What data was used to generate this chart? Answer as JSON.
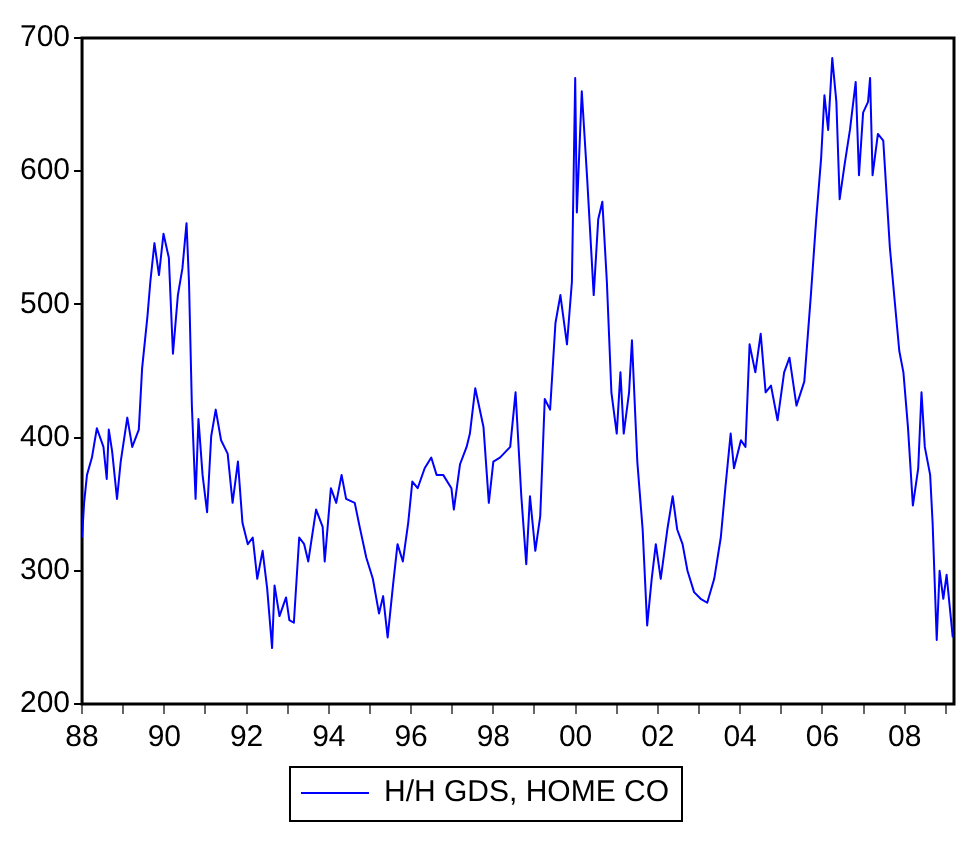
{
  "chart_data": {
    "type": "line",
    "x": [
      1988.0,
      1988.05,
      1988.12,
      1988.24,
      1988.36,
      1988.52,
      1988.6,
      1988.65,
      1988.73,
      1988.85,
      1988.94,
      1989.1,
      1989.22,
      1989.38,
      1989.46,
      1989.59,
      1989.66,
      1989.76,
      1989.87,
      1989.98,
      1990.11,
      1990.21,
      1990.33,
      1990.44,
      1990.54,
      1990.6,
      1990.67,
      1990.76,
      1990.83,
      1990.93,
      1991.04,
      1991.14,
      1991.25,
      1991.38,
      1991.54,
      1991.66,
      1991.79,
      1991.9,
      1992.03,
      1992.15,
      1992.26,
      1992.39,
      1992.5,
      1992.62,
      1992.68,
      1992.8,
      1992.96,
      1993.04,
      1993.15,
      1993.28,
      1993.4,
      1993.5,
      1993.69,
      1993.85,
      1993.9,
      1994.05,
      1994.18,
      1994.31,
      1994.42,
      1994.63,
      1994.75,
      1994.91,
      1995.07,
      1995.22,
      1995.32,
      1995.43,
      1995.56,
      1995.67,
      1995.8,
      1995.93,
      1996.03,
      1996.16,
      1996.33,
      1996.49,
      1996.62,
      1996.78,
      1996.98,
      1997.04,
      1997.19,
      1997.35,
      1997.43,
      1997.56,
      1997.76,
      1997.89,
      1998.0,
      1998.16,
      1998.41,
      1998.54,
      1998.68,
      1998.8,
      1998.89,
      1999.02,
      1999.14,
      1999.25,
      1999.38,
      1999.51,
      1999.63,
      1999.79,
      1999.91,
      1999.99,
      2000.03,
      2000.15,
      2000.28,
      2000.44,
      2000.55,
      2000.65,
      2000.76,
      2000.87,
      2001.0,
      2001.09,
      2001.17,
      2001.3,
      2001.37,
      2001.5,
      2001.63,
      2001.74,
      2001.85,
      2001.95,
      2002.07,
      2002.23,
      2002.36,
      2002.47,
      2002.6,
      2002.72,
      2002.88,
      2003.04,
      2003.2,
      2003.37,
      2003.53,
      2003.64,
      2003.77,
      2003.85,
      2004.02,
      2004.13,
      2004.23,
      2004.37,
      2004.5,
      2004.62,
      2004.75,
      2004.91,
      2005.07,
      2005.2,
      2005.37,
      2005.56,
      2005.72,
      2005.85,
      2005.97,
      2006.05,
      2006.14,
      2006.24,
      2006.34,
      2006.42,
      2006.54,
      2006.67,
      2006.81,
      2006.89,
      2006.99,
      2007.11,
      2007.16,
      2007.22,
      2007.35,
      2007.48,
      2007.64,
      2007.76,
      2007.87,
      2007.97,
      2008.08,
      2008.2,
      2008.33,
      2008.41,
      2008.49,
      2008.62,
      2008.68,
      2008.78,
      2008.85,
      2008.94,
      2009.02,
      2009.17
    ],
    "series": [
      {
        "name": "H/H GDS, HOME CO",
        "color": "#0000ff",
        "values": [
          325,
          351,
          372,
          385,
          407,
          393,
          369,
          406,
          390,
          354,
          382,
          415,
          393,
          406,
          452,
          491,
          517,
          546,
          522,
          553,
          535,
          463,
          507,
          527,
          561,
          517,
          424,
          354,
          414,
          372,
          344,
          401,
          421,
          398,
          388,
          351,
          382,
          336,
          320,
          325,
          294,
          315,
          287,
          242,
          289,
          266,
          280,
          263,
          261,
          325,
          320,
          307,
          346,
          333,
          307,
          362,
          351,
          372,
          354,
          351,
          333,
          310,
          294,
          268,
          281,
          250,
          289,
          320,
          307,
          336,
          367,
          362,
          377,
          385,
          372,
          372,
          362,
          346,
          380,
          393,
          403,
          437,
          408,
          351,
          382,
          385,
          393,
          434,
          356,
          305,
          356,
          315,
          341,
          429,
          421,
          486,
          507,
          470,
          517,
          670,
          569,
          660,
          595,
          507,
          564,
          577,
          517,
          434,
          403,
          449,
          403,
          434,
          473,
          382,
          331,
          259,
          294,
          320,
          294,
          331,
          356,
          331,
          320,
          300,
          284,
          279,
          276,
          294,
          325,
          362,
          403,
          377,
          398,
          393,
          470,
          449,
          478,
          434,
          439,
          413,
          449,
          460,
          424,
          442,
          507,
          564,
          610,
          657,
          631,
          685,
          652,
          579,
          605,
          631,
          667,
          597,
          644,
          652,
          670,
          597,
          628,
          623,
          543,
          502,
          465,
          449,
          408,
          349,
          377,
          434,
          393,
          372,
          336,
          248,
          300,
          279,
          297,
          250
        ]
      }
    ],
    "xlim": [
      1988,
      2009.2
    ],
    "xticks": [
      {
        "value": 1988,
        "label": "88"
      },
      {
        "value": 1989,
        "label": null
      },
      {
        "value": 1990,
        "label": "90"
      },
      {
        "value": 1991,
        "label": null
      },
      {
        "value": 1992,
        "label": "92"
      },
      {
        "value": 1993,
        "label": null
      },
      {
        "value": 1994,
        "label": "94"
      },
      {
        "value": 1995,
        "label": null
      },
      {
        "value": 1996,
        "label": "96"
      },
      {
        "value": 1997,
        "label": null
      },
      {
        "value": 1998,
        "label": "98"
      },
      {
        "value": 1999,
        "label": null
      },
      {
        "value": 2000,
        "label": "00"
      },
      {
        "value": 2001,
        "label": null
      },
      {
        "value": 2002,
        "label": "02"
      },
      {
        "value": 2003,
        "label": null
      },
      {
        "value": 2004,
        "label": "04"
      },
      {
        "value": 2005,
        "label": null
      },
      {
        "value": 2006,
        "label": "06"
      },
      {
        "value": 2007,
        "label": null
      },
      {
        "value": 2008,
        "label": "08"
      },
      {
        "value": 2009,
        "label": null
      }
    ],
    "ylim": [
      200,
      700
    ],
    "yticks": [
      200,
      300,
      400,
      500,
      600,
      700
    ],
    "grid": false,
    "legend": "bottom",
    "marker": "none",
    "line_style": "solid"
  }
}
